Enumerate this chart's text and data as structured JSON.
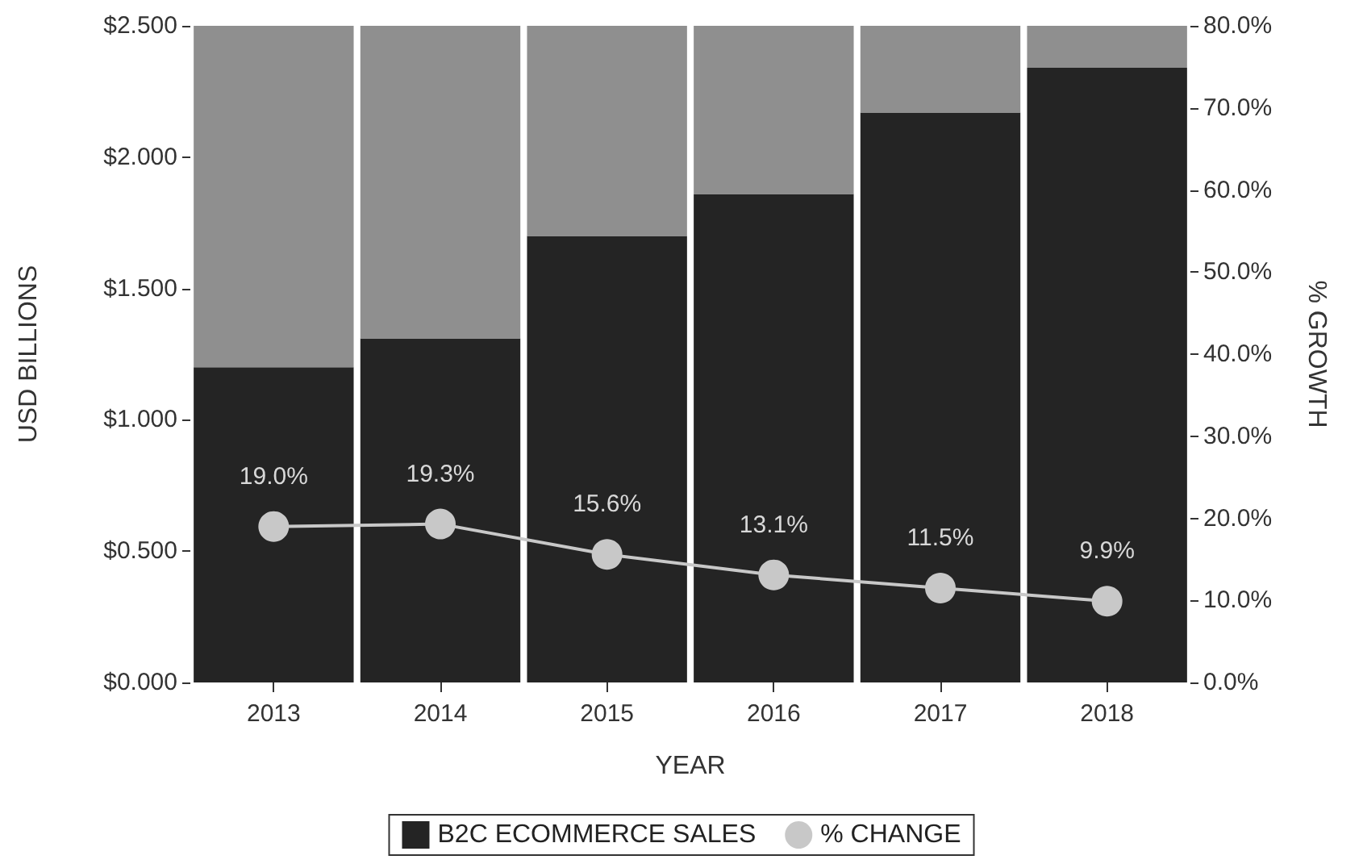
{
  "chart_data": {
    "type": "bar",
    "stacked": true,
    "xlabel": "YEAR",
    "ylabel": "USD BILLIONS",
    "y2label": "% GROWTH",
    "categories": [
      "2013",
      "2014",
      "2015",
      "2016",
      "2017",
      "2018"
    ],
    "series": [
      {
        "name": "B2C ECOMMERCE SALES",
        "color": "#242424",
        "values": [
          1.2,
          1.31,
          1.7,
          1.86,
          2.17,
          2.34
        ]
      },
      {
        "color": "#8f8f8f",
        "values": [
          1.3,
          1.19,
          0.8,
          0.64,
          0.33,
          0.16
        ]
      },
      {
        "name": "% CHANGE",
        "type": "line",
        "axis": "y2",
        "color": "#c8c8c8",
        "marker": "circle",
        "values": [
          19.0,
          19.3,
          15.6,
          13.1,
          11.5,
          9.9
        ],
        "value_labels": [
          "19.0%",
          "19.3%",
          "15.6%",
          "13.1%",
          "11.5%",
          "9.9%"
        ]
      }
    ],
    "ylim": [
      0,
      2.5
    ],
    "yticks": [
      {
        "value": 0,
        "label": "$0.000"
      },
      {
        "value": 0.5,
        "label": "$0.500"
      },
      {
        "value": 1,
        "label": "$1.000"
      },
      {
        "value": 1.5,
        "label": "$1.500"
      },
      {
        "value": 2,
        "label": "$2.000"
      },
      {
        "value": 2.5,
        "label": "$2.500"
      }
    ],
    "y2lim": [
      0,
      80
    ],
    "y2ticks": [
      {
        "value": 0,
        "label": "0.0%"
      },
      {
        "value": 10,
        "label": "10.0%"
      },
      {
        "value": 20,
        "label": "20.0%"
      },
      {
        "value": 30,
        "label": "30.0%"
      },
      {
        "value": 40,
        "label": "40.0%"
      },
      {
        "value": 50,
        "label": "50.0%"
      },
      {
        "value": 60,
        "label": "60.0%"
      },
      {
        "value": 70,
        "label": "70.0%"
      },
      {
        "value": 80,
        "label": "80.0%"
      }
    ],
    "grid": false,
    "legend": "bottom"
  }
}
